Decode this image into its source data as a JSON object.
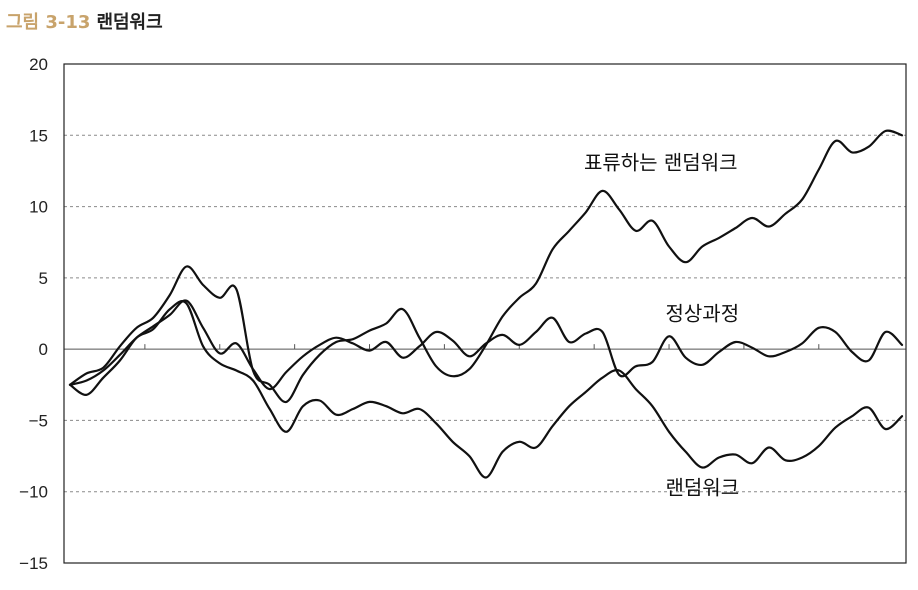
{
  "figure": {
    "number": "그림 3-13",
    "title": "랜덤워크",
    "accent_color": "#c8a36b"
  },
  "chart_data": {
    "type": "line",
    "title": "",
    "xlabel": "",
    "ylabel": "",
    "ylim": [
      -15,
      20
    ],
    "yticks": [
      20,
      15,
      10,
      5,
      0,
      -5,
      -10,
      -15
    ],
    "ytick_labels": [
      "20",
      "15",
      "10",
      "5",
      "0",
      "−5",
      "−10",
      "−15"
    ],
    "xlim": [
      0,
      100
    ],
    "xticks_on_zero_line": [
      9,
      18,
      27,
      36,
      45,
      54,
      63,
      72,
      81,
      90
    ],
    "grid": "horizontal dotted",
    "line_color": "#111111",
    "series": [
      {
        "name": "표류하는 랜덤워크",
        "x": [
          0,
          2,
          4,
          6,
          8,
          10,
          12,
          14,
          16,
          18,
          20,
          22,
          24,
          26,
          28,
          30,
          32,
          34,
          36,
          38,
          40,
          42,
          44,
          46,
          48,
          50,
          52,
          54,
          56,
          58,
          60,
          62,
          64,
          66,
          68,
          70,
          72,
          74,
          76,
          78,
          80,
          82,
          84,
          86,
          88,
          90,
          92,
          94,
          96,
          98,
          100
        ],
        "y": [
          -2.5,
          -1.7,
          -1.3,
          0.2,
          1.5,
          2.2,
          3.8,
          5.8,
          4.5,
          3.6,
          4.2,
          -1.5,
          -2.5,
          -3.7,
          -1.8,
          -0.4,
          0.5,
          0.7,
          1.3,
          1.8,
          2.8,
          0.8,
          -1.2,
          -1.9,
          -1.4,
          0.3,
          2.3,
          3.6,
          4.6,
          7.0,
          8.3,
          9.6,
          11.1,
          9.8,
          8.3,
          9.0,
          7.2,
          6.1,
          7.2,
          7.8,
          8.5,
          9.2,
          8.6,
          9.5,
          10.5,
          12.6,
          14.6,
          13.8,
          14.2,
          15.3,
          15.0
        ]
      },
      {
        "name": "정상과정",
        "x": [
          0,
          2,
          4,
          6,
          8,
          10,
          12,
          14,
          16,
          18,
          20,
          22,
          24,
          26,
          28,
          30,
          32,
          34,
          36,
          38,
          40,
          42,
          44,
          46,
          48,
          50,
          52,
          54,
          56,
          58,
          60,
          62,
          64,
          66,
          68,
          70,
          72,
          74,
          76,
          78,
          80,
          82,
          84,
          86,
          88,
          90,
          92,
          94,
          96,
          98,
          100
        ],
        "y": [
          -2.5,
          -2.2,
          -1.5,
          -0.4,
          0.8,
          1.6,
          2.4,
          3.4,
          1.5,
          -0.3,
          0.4,
          -1.4,
          -2.8,
          -1.6,
          -0.5,
          0.3,
          0.8,
          0.4,
          -0.1,
          0.5,
          -0.6,
          0.2,
          1.2,
          0.6,
          -0.5,
          0.4,
          1.0,
          0.3,
          1.2,
          2.2,
          0.5,
          1.1,
          1.2,
          -1.8,
          -1.2,
          -0.9,
          0.9,
          -0.6,
          -1.1,
          -0.2,
          0.5,
          0.1,
          -0.5,
          -0.2,
          0.4,
          1.5,
          1.2,
          -0.2,
          -0.8,
          1.2,
          0.3
        ]
      },
      {
        "name": "랜덤워크",
        "x": [
          0,
          2,
          4,
          6,
          8,
          10,
          12,
          14,
          16,
          18,
          20,
          22,
          24,
          26,
          28,
          30,
          32,
          34,
          36,
          38,
          40,
          42,
          44,
          46,
          48,
          50,
          52,
          54,
          56,
          58,
          60,
          62,
          64,
          66,
          68,
          70,
          72,
          74,
          76,
          78,
          80,
          82,
          84,
          86,
          88,
          90,
          92,
          94,
          96,
          98,
          100
        ],
        "y": [
          -2.5,
          -3.2,
          -2.0,
          -0.8,
          0.8,
          1.4,
          2.8,
          3.2,
          0.2,
          -1.0,
          -1.5,
          -2.2,
          -4.2,
          -5.8,
          -4.0,
          -3.6,
          -4.6,
          -4.2,
          -3.7,
          -4.0,
          -4.5,
          -4.2,
          -5.2,
          -6.5,
          -7.5,
          -9.0,
          -7.2,
          -6.5,
          -6.9,
          -5.4,
          -4.0,
          -3.0,
          -2.0,
          -1.5,
          -2.8,
          -4.0,
          -5.8,
          -7.2,
          -8.3,
          -7.6,
          -7.4,
          -8.0,
          -6.9,
          -7.8,
          -7.6,
          -6.8,
          -5.5,
          -4.7,
          -4.1,
          -5.6,
          -4.7
        ]
      }
    ],
    "annotations": [
      {
        "text": "표류하는 랜덤워크",
        "x": 71,
        "y": 12.6
      },
      {
        "text": "정상과정",
        "x": 76,
        "y": 2.0
      },
      {
        "text": "랜덤워크",
        "x": 76,
        "y": -10.2
      }
    ]
  }
}
